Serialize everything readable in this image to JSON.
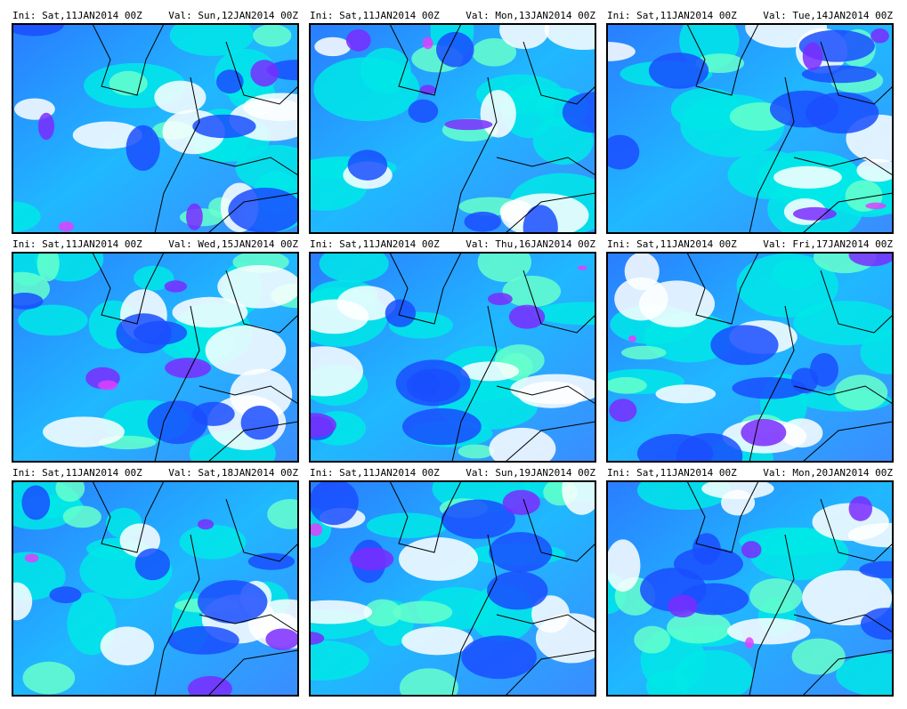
{
  "panels": [
    {
      "init": "Ini: Sat,11JAN2014 00Z",
      "valid": "Val: Sun,12JAN2014 00Z"
    },
    {
      "init": "Ini: Sat,11JAN2014 00Z",
      "valid": "Val: Mon,13JAN2014 00Z"
    },
    {
      "init": "Ini: Sat,11JAN2014 00Z",
      "valid": "Val: Tue,14JAN2014 00Z"
    },
    {
      "init": "Ini: Sat,11JAN2014 00Z",
      "valid": "Val: Wed,15JAN2014 00Z"
    },
    {
      "init": "Ini: Sat,11JAN2014 00Z",
      "valid": "Val: Thu,16JAN2014 00Z"
    },
    {
      "init": "Ini: Sat,11JAN2014 00Z",
      "valid": "Val: Fri,17JAN2014 00Z"
    },
    {
      "init": "Ini: Sat,11JAN2014 00Z",
      "valid": "Val: Sat,18JAN2014 00Z"
    },
    {
      "init": "Ini: Sat,11JAN2014 00Z",
      "valid": "Val: Sun,19JAN2014 00Z"
    },
    {
      "init": "Ini: Sat,11JAN2014 00Z",
      "valid": "Val: Mon,20JAN2014 00Z"
    }
  ]
}
